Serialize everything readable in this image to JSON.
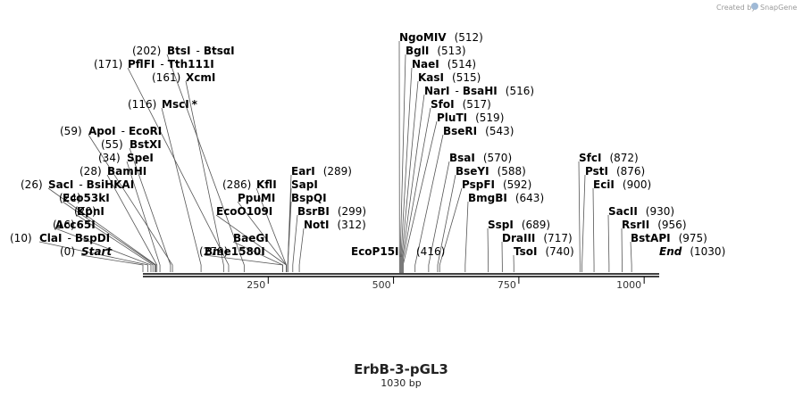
{
  "plasmid": {
    "name": "ErbB-3-pGL3",
    "length_label": "1030 bp",
    "length": 1030
  },
  "credit": {
    "text": "Created by",
    "brand": "SnapGene"
  },
  "axis": {
    "ticks": [
      "250",
      "500",
      "750",
      "1000"
    ]
  },
  "sites": [
    {
      "pos": "(0)",
      "name": "Start",
      "bp": 0,
      "row": 0,
      "side": "left",
      "italic": true
    },
    {
      "pos": "(10)",
      "name": "ClaI",
      "name2": "BspDI",
      "bp": 10,
      "row": 1,
      "side": "left"
    },
    {
      "pos": "(16)",
      "name": "Acc65I",
      "bp": 16,
      "row": 2,
      "side": "left"
    },
    {
      "pos": "(20)",
      "name": "KpnI",
      "bp": 20,
      "row": 3,
      "side": "left"
    },
    {
      "pos": "(24)",
      "name": "Eco53kI",
      "bp": 24,
      "row": 4,
      "side": "left"
    },
    {
      "pos": "(26)",
      "name": "SacI",
      "name2": "BsiHKAI",
      "bp": 26,
      "row": 5,
      "side": "left"
    },
    {
      "pos": "(28)",
      "name": "BamHI",
      "bp": 28,
      "row": 6,
      "side": "left"
    },
    {
      "pos": "(34)",
      "name": "SpeI",
      "bp": 34,
      "row": 7,
      "side": "left"
    },
    {
      "pos": "(55)",
      "name": "BstXI",
      "bp": 55,
      "row": 8,
      "side": "left"
    },
    {
      "pos": "(59)",
      "name": "ApoI",
      "name2": "EcoRI",
      "bp": 59,
      "row": 9,
      "side": "left"
    },
    {
      "pos": "(116)",
      "name": "MscI",
      "star": "*",
      "bp": 116,
      "row": 11,
      "side": "left"
    },
    {
      "pos": "(161)",
      "name": "XcmI",
      "bp": 161,
      "row": 13,
      "side": "left"
    },
    {
      "pos": "(171)",
      "name": "PflFI",
      "name2": "Tth111I",
      "bp": 171,
      "row": 14,
      "side": "left"
    },
    {
      "pos": "(202)",
      "name": "BtsI",
      "name2": "BtsαI",
      "bp": 202,
      "row": 15,
      "side": "left"
    },
    {
      "pos": "(279)",
      "name": "Bme1580I",
      "bp": 279,
      "row": 0,
      "side": "left"
    },
    {
      "pos": "",
      "name": "BaeGI",
      "bp": 279,
      "row": 1,
      "side": "left"
    },
    {
      "pos": "",
      "name": "EcoO109I",
      "bp": 286,
      "row": 3,
      "side": "left"
    },
    {
      "pos": "",
      "name": "PpuMI",
      "bp": 286,
      "row": 4,
      "side": "left"
    },
    {
      "pos": "(286)",
      "name": "KflI",
      "bp": 286,
      "row": 5,
      "side": "left"
    },
    {
      "pos": "(289)",
      "name": "EarI",
      "bp": 289,
      "row": 6,
      "side": "right"
    },
    {
      "pos": "",
      "name": "SapI",
      "bp": 289,
      "row": 5,
      "side": "right"
    },
    {
      "pos": "",
      "name": "BspQI",
      "bp": 289,
      "row": 4,
      "side": "right"
    },
    {
      "pos": "(299)",
      "name": "BsrBI",
      "bp": 299,
      "row": 3,
      "side": "right"
    },
    {
      "pos": "(312)",
      "name": "NotI",
      "bp": 312,
      "row": 2,
      "side": "right"
    },
    {
      "pos": "(416)",
      "name": "EcoP15I",
      "bp": 416,
      "row": 0,
      "side": "left"
    },
    {
      "pos": "(512)",
      "name": "NgoMIV",
      "bp": 512,
      "row": 16,
      "side": "right"
    },
    {
      "pos": "(513)",
      "name": "BglI",
      "bp": 513,
      "row": 15,
      "side": "right"
    },
    {
      "pos": "(514)",
      "name": "NaeI",
      "bp": 514,
      "row": 14,
      "side": "right"
    },
    {
      "pos": "(515)",
      "name": "KasI",
      "bp": 515,
      "row": 13,
      "side": "right"
    },
    {
      "pos": "(516)",
      "name": "NarI",
      "name2": "BsaHI",
      "bp": 516,
      "row": 12,
      "side": "right"
    },
    {
      "pos": "(517)",
      "name": "SfoI",
      "bp": 517,
      "row": 11,
      "side": "right"
    },
    {
      "pos": "(519)",
      "name": "PluTI",
      "bp": 519,
      "row": 10,
      "side": "right"
    },
    {
      "pos": "(543)",
      "name": "BseRI",
      "bp": 543,
      "row": 9,
      "side": "right"
    },
    {
      "pos": "(570)",
      "name": "BsaI",
      "bp": 570,
      "row": 7,
      "side": "right"
    },
    {
      "pos": "(588)",
      "name": "BseYI",
      "bp": 588,
      "row": 6,
      "side": "right"
    },
    {
      "pos": "(592)",
      "name": "PspFI",
      "bp": 592,
      "row": 5,
      "side": "right"
    },
    {
      "pos": "(643)",
      "name": "BmgBI",
      "bp": 643,
      "row": 4,
      "side": "right"
    },
    {
      "pos": "(689)",
      "name": "SspI",
      "bp": 689,
      "row": 2,
      "side": "right"
    },
    {
      "pos": "(717)",
      "name": "DraIII",
      "bp": 717,
      "row": 1,
      "side": "right"
    },
    {
      "pos": "(740)",
      "name": "TsoI",
      "bp": 740,
      "row": 0,
      "side": "right"
    },
    {
      "pos": "(872)",
      "name": "SfcI",
      "bp": 872,
      "row": 7,
      "side": "right"
    },
    {
      "pos": "(876)",
      "name": "PstI",
      "bp": 876,
      "row": 6,
      "side": "right"
    },
    {
      "pos": "(900)",
      "name": "EciI",
      "bp": 900,
      "row": 5,
      "side": "right"
    },
    {
      "pos": "(930)",
      "name": "SacII",
      "bp": 930,
      "row": 3,
      "side": "right"
    },
    {
      "pos": "(956)",
      "name": "RsrII",
      "bp": 956,
      "row": 2,
      "side": "right"
    },
    {
      "pos": "(975)",
      "name": "BstAPI",
      "bp": 975,
      "row": 1,
      "side": "right"
    },
    {
      "pos": "(1030)",
      "name": "End",
      "bp": 1030,
      "row": 0,
      "side": "right",
      "italic": true
    }
  ]
}
